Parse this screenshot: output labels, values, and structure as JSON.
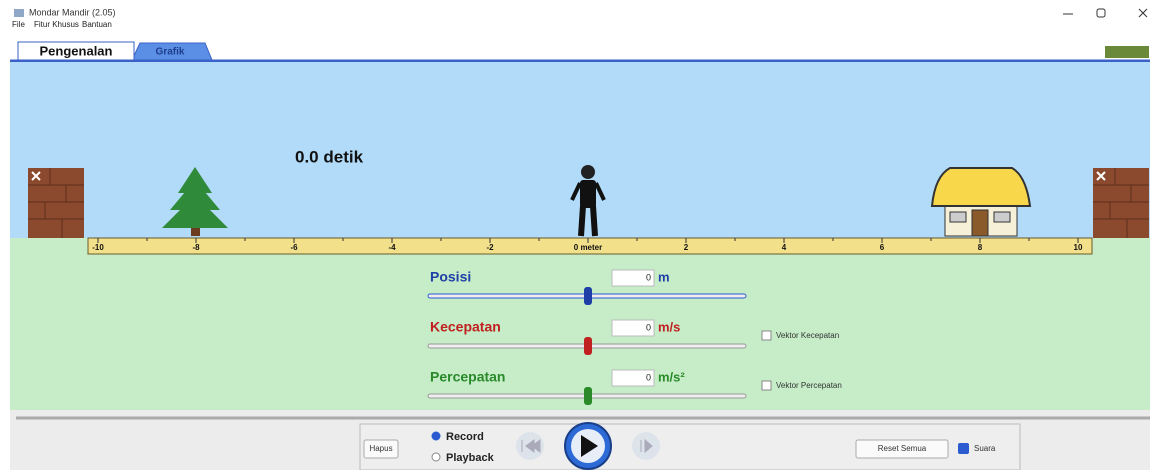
{
  "window": {
    "title": "Mondar Mandir (2.05)"
  },
  "menu": [
    "File",
    "Fitur Khusus",
    "Bantuan"
  ],
  "tabs": [
    "Pengenalan",
    "Grafik"
  ],
  "scene": {
    "time": "0.0 detik",
    "ruler": [
      "-10",
      "-8",
      "-6",
      "-4",
      "-2",
      "0 meter",
      "2",
      "4",
      "6",
      "8",
      "10"
    ]
  },
  "controls": [
    {
      "label": "Posisi",
      "value": "0",
      "unit": "m"
    },
    {
      "label": "Kecepatan",
      "value": "0",
      "unit": "m/s",
      "checkbox": "Vektor Kecepatan"
    },
    {
      "label": "Percepatan",
      "value": "0",
      "unit": "m/s²",
      "checkbox": "Vektor Percepatan"
    }
  ],
  "playback": {
    "clear": "Hapus",
    "record": "Record",
    "play": "Playback",
    "reset": "Reset Semua",
    "sound": "Suara"
  }
}
